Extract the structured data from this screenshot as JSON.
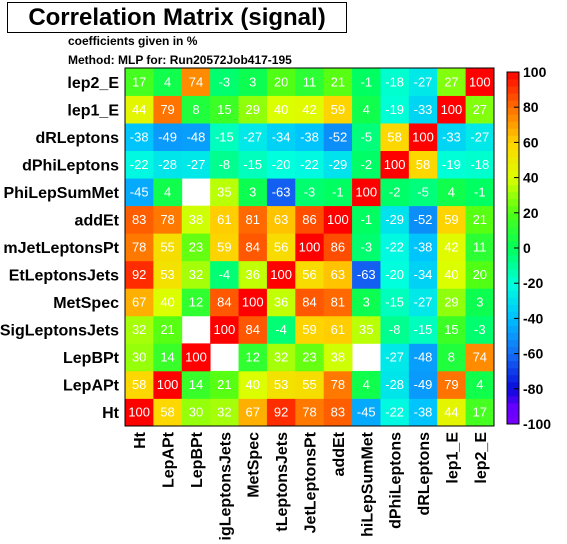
{
  "title": "Correlation Matrix (signal)",
  "subtitle": "coefficients given in %",
  "method": "Method: MLP for: Run20572Job417-195",
  "chart_data": {
    "type": "heatmap",
    "title": "Correlation Matrix (signal)",
    "xlabels": [
      "Ht",
      "LepAPt",
      "LepBPt",
      "SigLeptonsJets",
      "MetSpec",
      "SumEtLeptonsJets",
      "VSumJetLeptonsPt",
      "addEt",
      "DPhiLepSumMet",
      "dPhiLeptons",
      "dRLeptons",
      "lep1_E",
      "lep2_E"
    ],
    "ylabels": [
      "Ht",
      "LepAPt",
      "LepBPt",
      "SigLeptonsJets",
      "MetSpec",
      "SumEtLeptonsJets",
      "VSumJetLeptonsPt",
      "addEt",
      "DPhiLepSumMet",
      "dPhiLeptons",
      "dRLeptons",
      "lep1_E",
      "lep2_E"
    ],
    "xlabels_display": [
      "Ht",
      "LepAPt",
      "LepBPt",
      "igLeptonsJets",
      "MetSpec",
      "tLeptonsJets",
      "JetLeptonsPt",
      "addEt",
      "hiLepSumMet",
      "dPhiLeptons",
      "dRLeptons",
      "lep1_E",
      "lep2_E"
    ],
    "ylabels_display": [
      "Ht",
      "LepAPt",
      "LepBPt",
      "SigLeptonsJets",
      "MetSpec",
      "EtLeptonsJets",
      "mJetLeptonsPt",
      "addEt",
      "PhiLepSumMet",
      "dPhiLeptons",
      "dRLeptons",
      "lep1_E",
      "lep2_E"
    ],
    "matrix": [
      [
        100,
        58,
        30,
        32,
        67,
        92,
        78,
        83,
        -45,
        -22,
        -38,
        44,
        17
      ],
      [
        58,
        100,
        14,
        21,
        40,
        53,
        55,
        78,
        4,
        -28,
        -49,
        79,
        4
      ],
      [
        30,
        14,
        100,
        0,
        12,
        32,
        23,
        38,
        0,
        -27,
        -48,
        8,
        74
      ],
      [
        32,
        21,
        0,
        100,
        84,
        -4,
        59,
        61,
        35,
        -8,
        -15,
        15,
        -3
      ],
      [
        67,
        40,
        12,
        84,
        100,
        36,
        84,
        81,
        3,
        -15,
        -27,
        29,
        3
      ],
      [
        92,
        53,
        32,
        -4,
        36,
        100,
        56,
        63,
        -63,
        -20,
        -34,
        40,
        20
      ],
      [
        78,
        55,
        23,
        59,
        84,
        56,
        100,
        86,
        -3,
        -22,
        -38,
        42,
        11
      ],
      [
        83,
        78,
        38,
        61,
        81,
        63,
        86,
        100,
        -1,
        -29,
        -52,
        59,
        21
      ],
      [
        -45,
        4,
        0,
        35,
        3,
        -63,
        -3,
        -1,
        100,
        -2,
        -5,
        4,
        -1
      ],
      [
        -22,
        -28,
        -27,
        -8,
        -15,
        -20,
        -22,
        -29,
        -2,
        100,
        58,
        -19,
        -18
      ],
      [
        -38,
        -49,
        -48,
        -15,
        -27,
        -34,
        -38,
        -52,
        -5,
        58,
        100,
        -33,
        -27
      ],
      [
        44,
        79,
        8,
        15,
        29,
        40,
        42,
        59,
        4,
        -19,
        -33,
        100,
        27
      ],
      [
        17,
        4,
        74,
        -3,
        3,
        20,
        11,
        21,
        -1,
        -18,
        -27,
        27,
        100
      ]
    ],
    "zlim": [
      -100,
      100
    ],
    "colorbar_ticks": [
      100,
      80,
      60,
      40,
      20,
      0,
      -20,
      -40,
      -60,
      -80,
      -100
    ]
  }
}
